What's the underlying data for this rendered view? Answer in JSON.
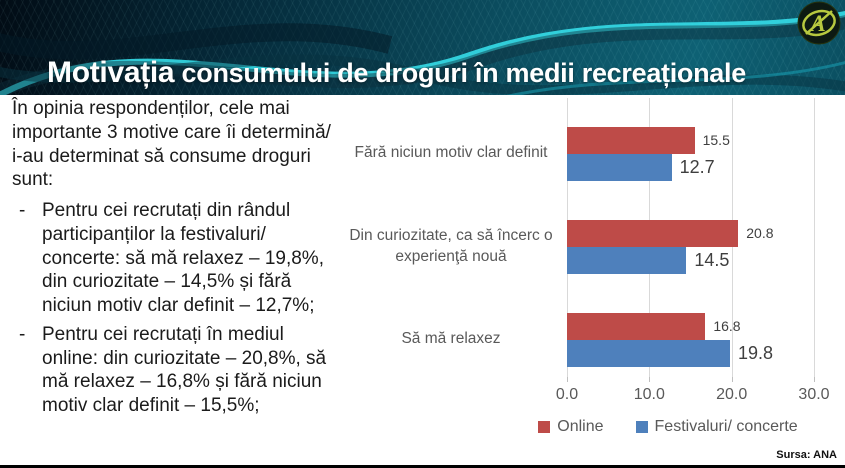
{
  "header": {
    "title_emphasis": "Motivația",
    "title_rest": " consumului de droguri în medii recreaționale",
    "logo_name": "ana-anti-drug-agency-logo",
    "accent_color": "#35dde8"
  },
  "left_panel": {
    "intro": "În opinia respondenților, cele mai importante 3 motive care îi determină/ i-au determinat să consume droguri sunt:",
    "bullets": [
      {
        "marker": "-",
        "text": "Pentru cei recrutați din rândul participanților la festivaluri/ concerte: să mă relaxez – 19,8%, din curiozitate – 14,5% și fără niciun motiv clar definit – 12,7%;"
      },
      {
        "marker": "-",
        "text": "Pentru cei recrutați în mediul online: din curiozitate – 20,8%, să mă relaxez – 16,8% și fără niciun motiv clar definit – 15,5%;"
      }
    ]
  },
  "chart_data": {
    "type": "bar",
    "orientation": "horizontal",
    "categories": [
      "Fără niciun motiv clar definit",
      "Din curiozitate, ca să încerc o experienţă nouă",
      "Să mă relaxez"
    ],
    "series": [
      {
        "name": "Online",
        "color": "#BE4B48",
        "values": [
          15.5,
          20.8,
          16.8
        ],
        "label_font_px": 14
      },
      {
        "name": "Festivaluri/ concerte",
        "color": "#4E80BC",
        "values": [
          12.7,
          14.5,
          19.8
        ],
        "label_font_px": 18
      }
    ],
    "xlim": [
      0,
      30
    ],
    "x_ticks": [
      "0.0",
      "10.0",
      "20.0",
      "30.0"
    ],
    "grid": true,
    "legend_position": "bottom",
    "data_labels": true,
    "gridline_color": "#d9d9d9",
    "text_color": "#595959"
  },
  "footer": {
    "source": "Sursa: ANA"
  }
}
